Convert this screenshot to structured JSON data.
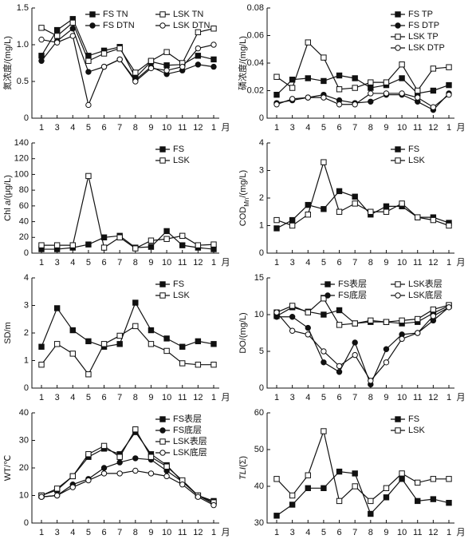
{
  "chart_data": [
    {
      "type": "line",
      "y_label": [
        "氮浓度/(mg/L)"
      ],
      "y_label_styles": [
        "normal"
      ],
      "categories": [
        "1",
        "3",
        "4",
        "5",
        "6",
        "7",
        "8",
        "9",
        "10",
        "11",
        "12",
        "1"
      ],
      "x_label": "月",
      "ylim": [
        0,
        1.5
      ],
      "yticks": [
        0,
        0.5,
        {
          "value": 1,
          "label": "1.0"
        },
        1.5
      ],
      "legend": "upper right",
      "legend_columns": 2,
      "series": [
        {
          "name": "FS TN",
          "color": "#111",
          "marker": "square",
          "filled": true,
          "values": [
            0.85,
            1.2,
            1.35,
            0.85,
            0.92,
            0.97,
            0.55,
            0.77,
            0.72,
            0.73,
            0.85,
            0.8
          ]
        },
        {
          "name": "LSK TN",
          "color": "#111",
          "marker": "square",
          "filled": false,
          "values": [
            1.23,
            1.12,
            1.3,
            0.78,
            0.88,
            0.95,
            0.62,
            0.78,
            0.9,
            0.75,
            1.17,
            1.22
          ]
        },
        {
          "name": "FS DTN",
          "color": "#111",
          "marker": "circle",
          "filled": true,
          "values": [
            0.78,
            1.05,
            1.22,
            0.63,
            0.7,
            0.8,
            0.52,
            0.7,
            0.6,
            0.65,
            0.73,
            0.7
          ]
        },
        {
          "name": "LSK DTN",
          "color": "#111",
          "marker": "circle",
          "filled": false,
          "values": [
            1.07,
            1.03,
            1.12,
            0.18,
            0.7,
            0.8,
            0.5,
            0.68,
            0.65,
            0.7,
            0.95,
            1.0
          ]
        }
      ]
    },
    {
      "type": "line",
      "y_label": [
        "磷浓度/(mg/L)"
      ],
      "y_label_styles": [
        "normal"
      ],
      "categories": [
        "1",
        "3",
        "4",
        "5",
        "6",
        "7",
        "8",
        "9",
        "10",
        "11",
        "12",
        "1"
      ],
      "x_label": "月",
      "ylim": [
        0,
        0.08
      ],
      "yticks": [
        0,
        0.02,
        0.04,
        0.06,
        0.08
      ],
      "legend": "upper right",
      "legend_columns": 1,
      "series": [
        {
          "name": "FS TP",
          "color": "#111",
          "marker": "square",
          "filled": true,
          "values": [
            0.017,
            0.028,
            0.029,
            0.027,
            0.031,
            0.029,
            0.022,
            0.024,
            0.029,
            0.018,
            0.02,
            0.024
          ]
        },
        {
          "name": "FS DTP",
          "color": "#111",
          "marker": "circle",
          "filled": true,
          "values": [
            0.011,
            0.013,
            0.015,
            0.017,
            0.013,
            0.011,
            0.012,
            0.017,
            0.017,
            0.012,
            0.006,
            0.018
          ]
        },
        {
          "name": "LSK TP",
          "color": "#111",
          "marker": "square",
          "filled": false,
          "values": [
            0.03,
            0.022,
            0.055,
            0.044,
            0.021,
            0.022,
            0.026,
            0.026,
            0.039,
            0.02,
            0.036,
            0.037
          ]
        },
        {
          "name": "LSK DTP",
          "color": "#111",
          "marker": "circle",
          "filled": false,
          "values": [
            0.01,
            0.014,
            0.015,
            0.015,
            0.01,
            0.01,
            0.018,
            0.018,
            0.018,
            0.015,
            0.008,
            0.017
          ]
        }
      ]
    },
    {
      "type": "line",
      "y_label": [
        "Chl ",
        "a",
        "/(μg/L)"
      ],
      "y_label_styles": [
        "normal",
        "italic",
        "normal"
      ],
      "categories": [
        "1",
        "3",
        "4",
        "5",
        "6",
        "7",
        "8",
        "9",
        "10",
        "11",
        "12",
        "1"
      ],
      "x_label": "月",
      "ylim": [
        0,
        140
      ],
      "yticks": [
        0,
        20,
        40,
        60,
        80,
        100,
        120,
        140
      ],
      "legend": "upper right",
      "legend_columns": 1,
      "series": [
        {
          "name": "FS",
          "color": "#111",
          "marker": "square",
          "filled": true,
          "values": [
            5,
            5,
            7,
            11,
            20,
            22,
            7,
            8,
            28,
            10,
            7,
            5
          ]
        },
        {
          "name": "LSK",
          "color": "#111",
          "marker": "square",
          "filled": false,
          "values": [
            10,
            10,
            10,
            98,
            7,
            20,
            6,
            16,
            18,
            22,
            10,
            11
          ]
        }
      ]
    },
    {
      "type": "line",
      "y_label": [
        "COD",
        "Mn",
        "/(mg/L)"
      ],
      "y_label_styles": [
        "normal",
        "sub",
        "normal"
      ],
      "categories": [
        "1",
        "3",
        "4",
        "5",
        "6",
        "7",
        "8",
        "9",
        "10",
        "11",
        "12",
        "1"
      ],
      "x_label": "月",
      "ylim": [
        0,
        4
      ],
      "yticks": [
        0,
        1,
        2,
        3,
        4
      ],
      "legend": "upper right",
      "legend_columns": 1,
      "series": [
        {
          "name": "FS",
          "color": "#111",
          "marker": "square",
          "filled": true,
          "values": [
            0.9,
            1.2,
            1.75,
            1.6,
            2.25,
            2.05,
            1.4,
            1.7,
            1.7,
            1.3,
            1.3,
            1.1
          ]
        },
        {
          "name": "LSK",
          "color": "#111",
          "marker": "square",
          "filled": false,
          "values": [
            1.2,
            1.0,
            1.4,
            3.3,
            1.5,
            1.8,
            1.5,
            1.5,
            1.8,
            1.3,
            1.2,
            1.0
          ]
        }
      ]
    },
    {
      "type": "line",
      "y_label": [
        "SD/m"
      ],
      "y_label_styles": [
        "normal"
      ],
      "categories": [
        "1",
        "3",
        "4",
        "5",
        "6",
        "7",
        "8",
        "9",
        "10",
        "11",
        "12",
        "1"
      ],
      "x_label": "月",
      "ylim": [
        0,
        4
      ],
      "yticks": [
        0,
        1,
        2,
        3,
        4
      ],
      "legend": "upper right",
      "legend_columns": 1,
      "series": [
        {
          "name": "FS",
          "color": "#111",
          "marker": "square",
          "filled": true,
          "values": [
            1.5,
            2.9,
            2.1,
            1.7,
            1.5,
            1.6,
            3.1,
            2.1,
            1.8,
            1.5,
            1.7,
            1.6
          ]
        },
        {
          "name": "LSK",
          "color": "#111",
          "marker": "square",
          "filled": false,
          "values": [
            0.85,
            1.6,
            1.25,
            0.5,
            1.6,
            1.9,
            2.25,
            1.6,
            1.35,
            0.9,
            0.85,
            0.85
          ]
        }
      ]
    },
    {
      "type": "line",
      "y_label": [
        "DO/(mg/L)"
      ],
      "y_label_styles": [
        "normal"
      ],
      "categories": [
        "1",
        "3",
        "4",
        "5",
        "6",
        "7",
        "8",
        "9",
        "10",
        "11",
        "12",
        "1"
      ],
      "x_label": "月",
      "ylim": [
        0,
        15
      ],
      "yticks": [
        0,
        5,
        10,
        15
      ],
      "legend": "upper right",
      "legend_columns": 2,
      "series": [
        {
          "name": "FS表层",
          "color": "#111",
          "marker": "square",
          "filled": true,
          "values": [
            9.8,
            11,
            10.4,
            10,
            10.6,
            8.8,
            9,
            9,
            8.8,
            9,
            10.2,
            11.2
          ]
        },
        {
          "name": "LSK表层",
          "color": "#111",
          "marker": "square",
          "filled": false,
          "values": [
            10.3,
            11.2,
            10.3,
            12.2,
            8.6,
            8.8,
            9.2,
            9,
            9.2,
            9.4,
            10.7,
            11.3
          ]
        },
        {
          "name": "FS底层",
          "color": "#111",
          "marker": "circle",
          "filled": true,
          "values": [
            9.7,
            9.7,
            8.2,
            3.5,
            2.2,
            6.2,
            0.5,
            5.3,
            7.3,
            7.5,
            9.2,
            11
          ]
        },
        {
          "name": "LSK底层",
          "color": "#111",
          "marker": "circle",
          "filled": false,
          "values": [
            10.3,
            7.8,
            7.3,
            5,
            3,
            4.5,
            1,
            3.5,
            6.7,
            7.5,
            9.8,
            11
          ]
        }
      ]
    },
    {
      "type": "line",
      "y_label": [
        "WT/℃"
      ],
      "y_label_styles": [
        "normal"
      ],
      "categories": [
        "1",
        "3",
        "4",
        "5",
        "6",
        "7",
        "8",
        "9",
        "10",
        "11",
        "12",
        "1"
      ],
      "x_label": "月",
      "ylim": [
        0,
        40
      ],
      "yticks": [
        0,
        10,
        20,
        30,
        40
      ],
      "legend": "upper right",
      "legend_columns": 1,
      "series": [
        {
          "name": "FS表层",
          "color": "#111",
          "marker": "square",
          "filled": true,
          "values": [
            10,
            12,
            17,
            24,
            27,
            25,
            33,
            25,
            21,
            15,
            10,
            8
          ]
        },
        {
          "name": "FS底层",
          "color": "#111",
          "marker": "circle",
          "filled": true,
          "values": [
            9.5,
            10,
            14,
            16,
            20,
            22,
            23.5,
            23,
            19,
            15,
            10,
            7
          ]
        },
        {
          "name": "LSK表层",
          "color": "#111",
          "marker": "square",
          "filled": false,
          "values": [
            10,
            12.5,
            17,
            25,
            28,
            24,
            34,
            24,
            20.5,
            15.5,
            10,
            7.5
          ]
        },
        {
          "name": "LSK底层",
          "color": "#111",
          "marker": "circle",
          "filled": false,
          "values": [
            9.5,
            10,
            13,
            15.5,
            18,
            18,
            19,
            18,
            17,
            14,
            9.5,
            6.5
          ]
        }
      ]
    },
    {
      "type": "line",
      "y_label": [
        "TLI",
        "(Σ)"
      ],
      "y_label_styles": [
        "italic",
        "normal"
      ],
      "categories": [
        "1",
        "3",
        "4",
        "5",
        "6",
        "7",
        "8",
        "9",
        "10",
        "11",
        "12",
        "1"
      ],
      "x_label": "月",
      "ylim": [
        30,
        60
      ],
      "yticks": [
        30,
        40,
        50,
        60
      ],
      "legend": "upper right",
      "legend_columns": 1,
      "series": [
        {
          "name": "FS",
          "color": "#111",
          "marker": "square",
          "filled": true,
          "values": [
            32,
            35,
            39.5,
            39.5,
            44,
            43.5,
            32.5,
            37,
            42,
            36,
            36.5,
            35.5
          ]
        },
        {
          "name": "LSK",
          "color": "#111",
          "marker": "square",
          "filled": false,
          "values": [
            42,
            37.5,
            43,
            55,
            36,
            40,
            36,
            39.5,
            43.5,
            41,
            42,
            42
          ]
        }
      ]
    }
  ]
}
